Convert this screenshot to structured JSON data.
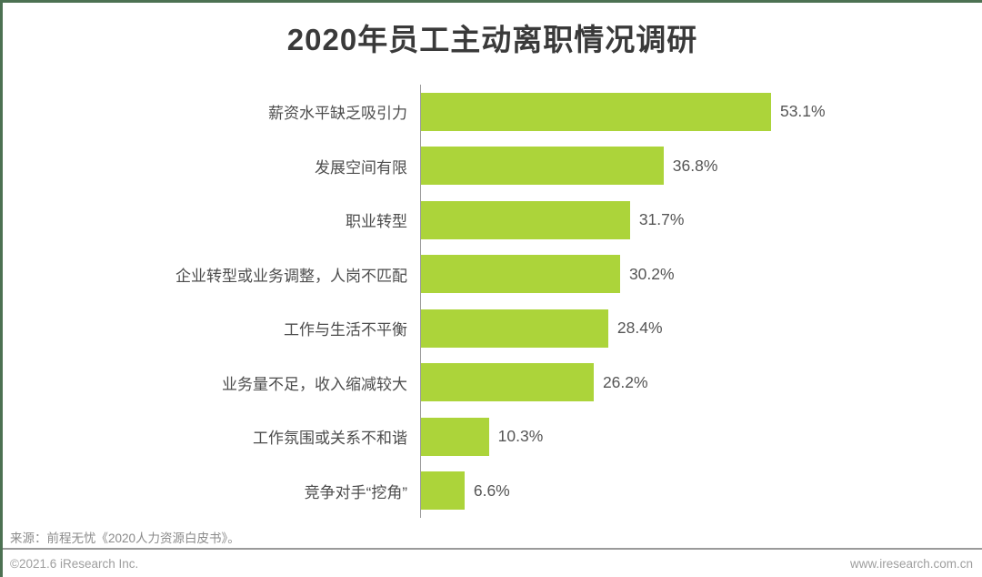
{
  "title": "2020年员工主动离职情况调研",
  "chart_data": {
    "type": "bar",
    "orientation": "horizontal",
    "title": "2020年员工主动离职情况调研",
    "categories": [
      "薪资水平缺乏吸引力",
      "发展空间有限",
      "职业转型",
      "企业转型或业务调整，人岗不匹配",
      "工作与生活不平衡",
      "业务量不足，收入缩减较大",
      "工作氛围或关系不和谐",
      "竞争对手“挖角”"
    ],
    "values": [
      53.1,
      36.8,
      31.7,
      30.2,
      28.4,
      26.2,
      10.3,
      6.6
    ],
    "value_labels": [
      "53.1%",
      "36.8%",
      "31.7%",
      "30.2%",
      "28.4%",
      "26.2%",
      "10.3%",
      "6.6%"
    ],
    "unit": "%",
    "xlim": [
      0,
      60
    ],
    "grid": false,
    "legend": false,
    "bar_color": "#ACD43A",
    "axis_line_color": "#9b9b9b"
  },
  "footer": {
    "source": "来源：前程无忧《2020人力资源白皮书》。",
    "copyright": "©2021.6 iResearch Inc.",
    "website": "www.iresearch.com.cn"
  },
  "colors": {
    "bar": "#ACD43A",
    "frame_border": "#4C7152",
    "title_text": "#3a3a3a",
    "label_text": "#4d4d4d",
    "footer_text": "#9e9e9e"
  }
}
